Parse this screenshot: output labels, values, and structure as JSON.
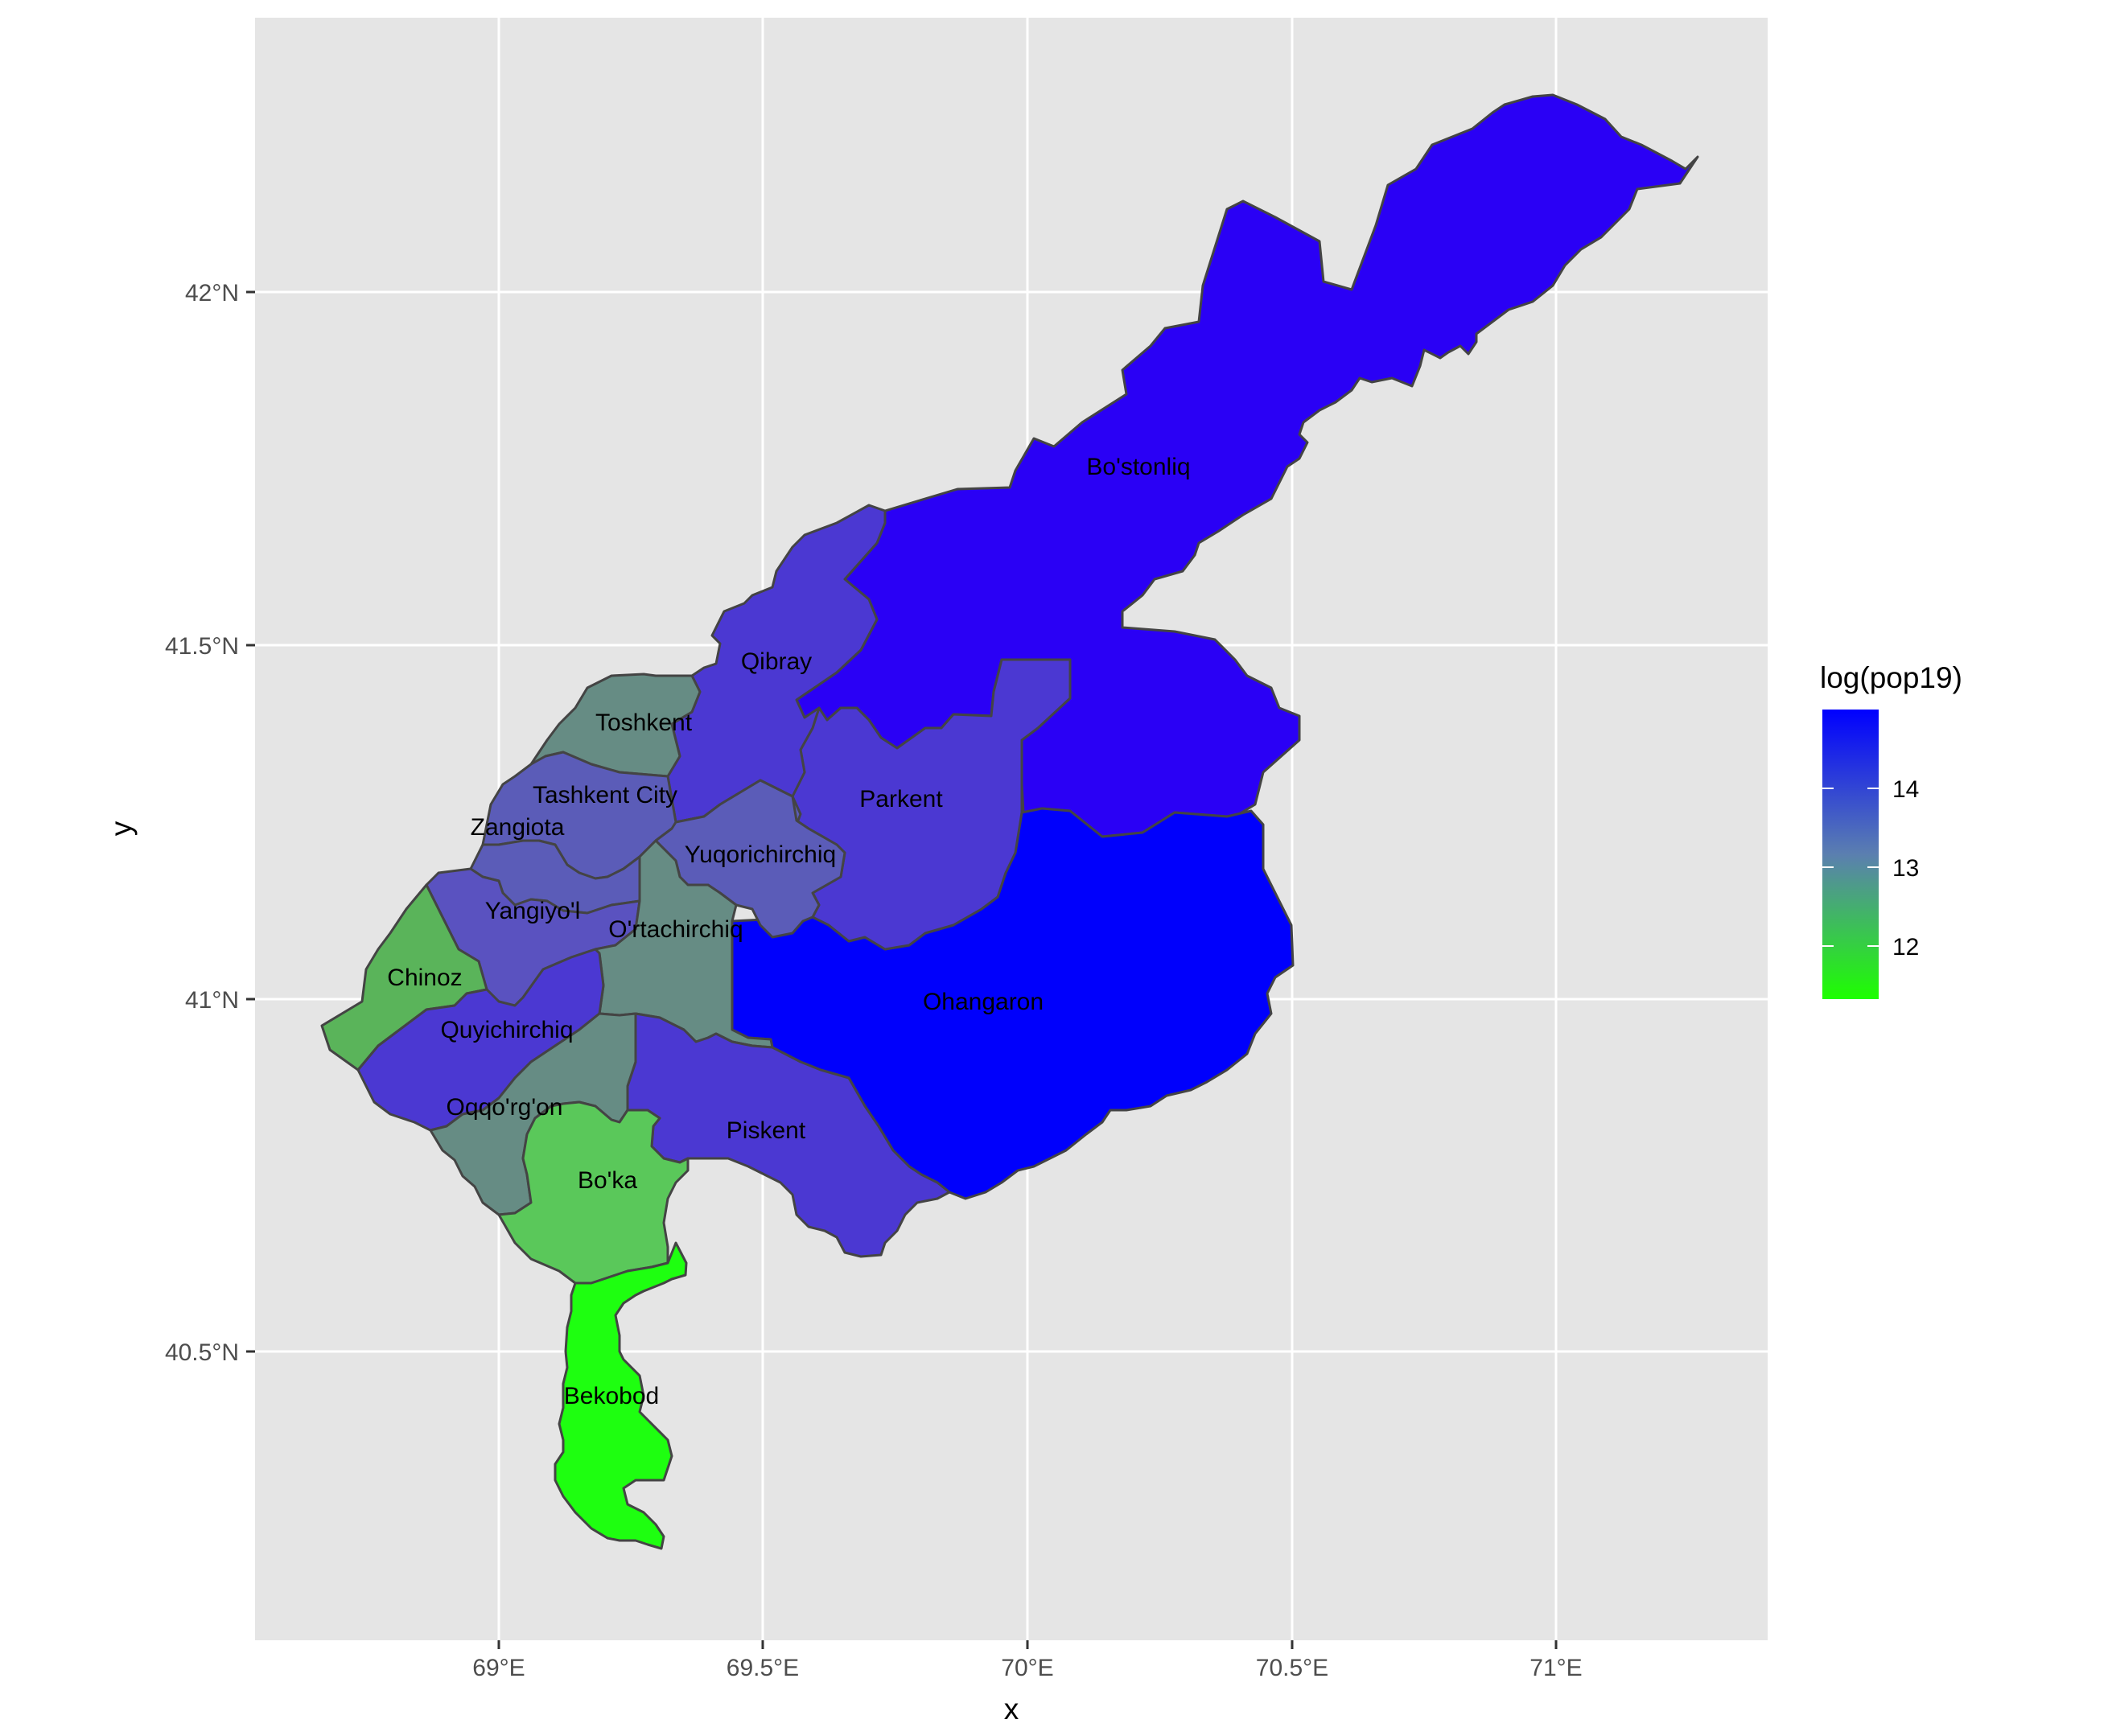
{
  "chart_data": {
    "type": "choropleth-map",
    "xlabel": "x",
    "ylabel": "y",
    "x_ticks": [
      "69°E",
      "69.5°E",
      "70°E",
      "70.5°E",
      "71°E"
    ],
    "y_ticks": [
      "40.5°N",
      "41°N",
      "41.5°N",
      "42°N"
    ],
    "grid": true,
    "legend": {
      "title": "log(pop19)",
      "position": "right",
      "ticks": [
        "12",
        "13",
        "14"
      ],
      "low_color": "#1eff00",
      "high_color": "#0000ff"
    },
    "regions": [
      {
        "name": "Bo'stonliq",
        "color": "#2a00f5"
      },
      {
        "name": "Ohangaron",
        "color": "#0000fc"
      },
      {
        "name": "Parkent",
        "color": "#4b38d2"
      },
      {
        "name": "Qibray",
        "color": "#4b38d2"
      },
      {
        "name": "Piskent",
        "color": "#4b38d2"
      },
      {
        "name": "Quyichirchiq",
        "color": "#4b38d2"
      },
      {
        "name": "Yuqorichirchiq",
        "color": "#5b5cb8"
      },
      {
        "name": "Tashkent City",
        "color": "#5b5cb8"
      },
      {
        "name": "Zangiota",
        "color": "#5b5cb8"
      },
      {
        "name": "Yangiyo'l",
        "color": "#5a52c0"
      },
      {
        "name": "Toshkent",
        "color": "#668c84"
      },
      {
        "name": "O'rtachirchiq",
        "color": "#668c84"
      },
      {
        "name": "Oqqo'rg'on",
        "color": "#668c84"
      },
      {
        "name": "Chinoz",
        "color": "#5ab45a"
      },
      {
        "name": "Bo'ka",
        "color": "#5ac85a"
      },
      {
        "name": "Bekobod",
        "color": "#1eff10"
      }
    ]
  }
}
